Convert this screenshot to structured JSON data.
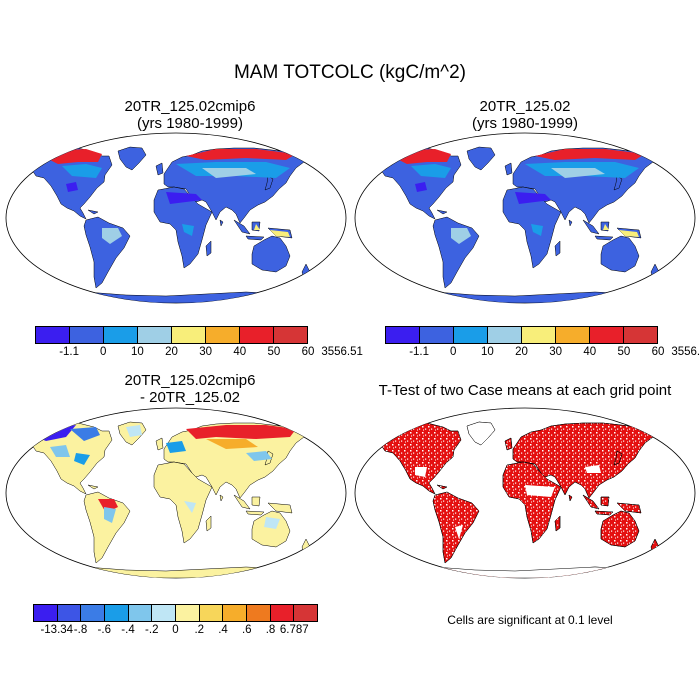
{
  "title": "MAM TOTCOLC (kgC/m^2)",
  "panels": [
    {
      "id": "p1",
      "title_line1": "20TR_125.02cmip6",
      "title_line2": "(yrs 1980-1999)"
    },
    {
      "id": "p2",
      "title_line1": "20TR_125.02",
      "title_line2": "(yrs 1980-1999)"
    },
    {
      "id": "p3",
      "title_line1": "20TR_125.02cmip6",
      "title_line2": "- 20TR_125.02"
    },
    {
      "id": "p4",
      "title_line1": "T-Test of two Case means at each grid point",
      "title_line2": ""
    }
  ],
  "colorbar_abs": {
    "labels": [
      "-1.1",
      "0",
      "10",
      "20",
      "30",
      "40",
      "50",
      "60",
      "3556.51"
    ],
    "colors": [
      "#3b1ef0",
      "#3d62e0",
      "#1a9de8",
      "#9fcfe6",
      "#f8ee7a",
      "#f6ad2b",
      "#e8202a",
      "#d63536"
    ]
  },
  "colorbar_diff": {
    "labels": [
      "-13.34",
      "-.8",
      "-.6",
      "-.4",
      "-.2",
      "0",
      ".2",
      ".4",
      ".6",
      ".8",
      "6.787"
    ],
    "colors": [
      "#3b1ef0",
      "#3d55e6",
      "#3b7ce6",
      "#1a9de8",
      "#7fc6ec",
      "#bfe6f5",
      "#fbf2a0",
      "#f7d65a",
      "#f6ad2b",
      "#ee7a1f",
      "#e8202a",
      "#d63536"
    ]
  },
  "significance_note": "Cells are significant at 0.1 level",
  "colors": {
    "ocean": "#ffffff",
    "signif": "#e41010",
    "coast": "#000000"
  }
}
